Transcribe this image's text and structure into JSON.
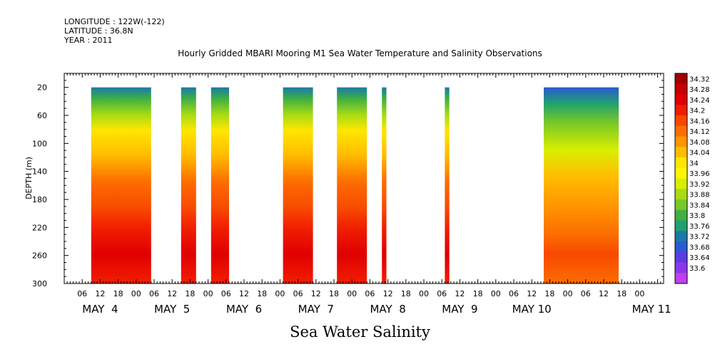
{
  "header": {
    "longitude": "LONGITUDE : 122W(-122)",
    "latitude": "LATITUDE : 36.8N",
    "year": "YEAR : 2011"
  },
  "chart_data": {
    "type": "heatmap",
    "title": "Hourly Gridded MBARI Mooring M1 Sea Water Temperature and Salinity Observations",
    "xlabel": "Sea Water Salinity",
    "ylabel": "DEPTH (m)",
    "xlim_hours": [
      0,
      200
    ],
    "ylim": [
      300,
      0
    ],
    "y_ticks": [
      20,
      60,
      100,
      140,
      180,
      220,
      260,
      300
    ],
    "hour_tick_labels": [
      "06",
      "12",
      "18",
      "00",
      "06",
      "12",
      "18",
      "00",
      "06",
      "12",
      "18",
      "00",
      "06",
      "12",
      "18",
      "00",
      "06",
      "12",
      "18",
      "00",
      "06",
      "12",
      "18",
      "00",
      "06",
      "12",
      "18",
      "00",
      "06",
      "12",
      "18",
      "00"
    ],
    "day_labels": [
      "MAY  4",
      "MAY  5",
      "MAY  6",
      "MAY  7",
      "MAY  8",
      "MAY  9",
      "MAY 10",
      "MAY 11"
    ],
    "colorbar": {
      "levels": [
        "34.32",
        "34.28",
        "34.24",
        "34.2",
        "34.16",
        "34.12",
        "34.08",
        "34.04",
        "34",
        "33.96",
        "33.92",
        "33.88",
        "33.84",
        "33.8",
        "33.76",
        "33.72",
        "33.68",
        "33.64",
        "33.6"
      ],
      "colors": [
        "#a00000",
        "#c80000",
        "#e00000",
        "#f01e00",
        "#f84800",
        "#fc6e00",
        "#ff9600",
        "#ffbe00",
        "#ffe600",
        "#fff700",
        "#d8ee00",
        "#a8dc14",
        "#78c828",
        "#40b040",
        "#20a070",
        "#1a7aa8",
        "#2a5ad0",
        "#5a3ce0",
        "#8a38ec",
        "#c040f0"
      ]
    },
    "data_segments_hours": [
      {
        "start": 9,
        "end": 29
      },
      {
        "start": 39,
        "end": 44
      },
      {
        "start": 49,
        "end": 55
      },
      {
        "start": 73,
        "end": 83
      },
      {
        "start": 91,
        "end": 101
      },
      {
        "start": 106,
        "end": 107.5
      },
      {
        "start": 127,
        "end": 128.5
      },
      {
        "start": 160,
        "end": 185
      }
    ],
    "grid": false,
    "legend": "colorbar-right"
  }
}
